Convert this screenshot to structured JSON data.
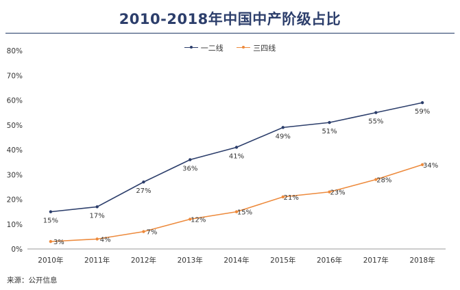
{
  "title": "2010-2018年中国中产阶级占比",
  "source": "来源：公开信息",
  "legend": [
    {
      "name": "一二线",
      "color": "#2c3e6b"
    },
    {
      "name": "三四线",
      "color": "#ed8a3c"
    }
  ],
  "chart_data": {
    "type": "line",
    "categories": [
      "2010年",
      "2011年",
      "2012年",
      "2013年",
      "2014年",
      "2015年",
      "2016年",
      "2017年",
      "2018年"
    ],
    "series": [
      {
        "name": "一二线",
        "color": "#2c3e6b",
        "values": [
          15,
          17,
          27,
          36,
          41,
          49,
          51,
          55,
          59
        ],
        "labels": [
          "15%",
          "17%",
          "27%",
          "36%",
          "41%",
          "49%",
          "51%",
          "55%",
          "59%"
        ]
      },
      {
        "name": "三四线",
        "color": "#ed8a3c",
        "values": [
          3,
          4,
          7,
          12,
          15,
          21,
          23,
          28,
          34
        ],
        "labels": [
          "3%",
          "4%",
          "7%",
          "12%",
          "15%",
          "21%",
          "23%",
          "28%",
          "34%"
        ]
      }
    ],
    "ylim": [
      0,
      80
    ],
    "yticks": [
      "0%",
      "10%",
      "20%",
      "30%",
      "40%",
      "50%",
      "60%",
      "70%",
      "80%"
    ],
    "grid": false,
    "legend_position": "top"
  }
}
